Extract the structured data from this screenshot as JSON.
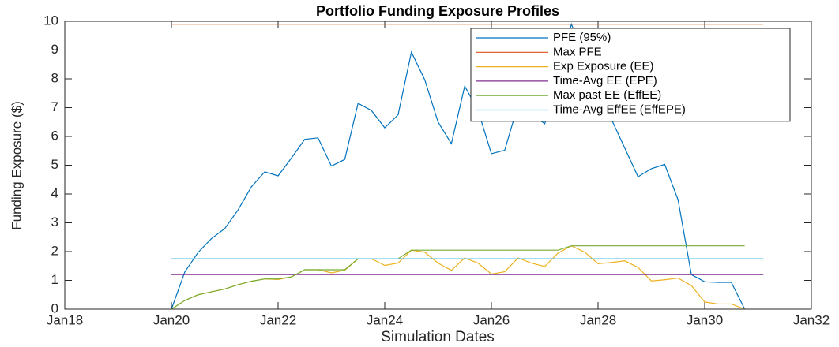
{
  "chart_data": {
    "type": "line",
    "title": "Portfolio Funding Exposure Profiles",
    "x_label": "Simulation Dates",
    "y_label": "Funding Exposure ($)",
    "x": [
      2020,
      2020.25,
      2020.5,
      2020.75,
      2021,
      2021.25,
      2021.5,
      2021.75,
      2022,
      2022.25,
      2022.5,
      2022.75,
      2023,
      2023.25,
      2023.5,
      2023.75,
      2024,
      2024.25,
      2024.5,
      2024.75,
      2025,
      2025.25,
      2025.5,
      2025.75,
      2026,
      2026.25,
      2026.5,
      2026.75,
      2027,
      2027.25,
      2027.5,
      2027.75,
      2028,
      2028.25,
      2028.5,
      2028.75,
      2029,
      2029.25,
      2029.5,
      2029.75,
      2030,
      2030.25,
      2030.5,
      2030.75
    ],
    "series": [
      {
        "name": "PFE (95%)",
        "color": "#0072BD",
        "values": [
          0,
          1.29,
          1.97,
          2.45,
          2.8,
          3.45,
          4.25,
          4.77,
          4.63,
          5.25,
          5.9,
          5.95,
          4.97,
          5.2,
          7.15,
          6.9,
          6.3,
          6.75,
          8.93,
          7.97,
          6.5,
          5.75,
          7.75,
          6.9,
          5.4,
          5.52,
          7.1,
          6.8,
          6.44,
          8.0,
          9.9,
          8.8,
          7.5,
          6.6,
          5.6,
          4.6,
          4.88,
          5.03,
          3.8,
          1.2,
          0.95,
          0.93,
          0.93,
          0
        ]
      },
      {
        "name": "Max PFE",
        "color": "#D95319",
        "x": [
          2020,
          2031.1
        ],
        "values": [
          9.9,
          9.9
        ]
      },
      {
        "name": "Exp Exposure (EE)",
        "color": "#EDB120",
        "values": [
          0,
          0.3,
          0.5,
          0.6,
          0.7,
          0.85,
          0.97,
          1.05,
          1.03,
          1.12,
          1.37,
          1.37,
          1.26,
          1.35,
          1.75,
          1.75,
          1.52,
          1.6,
          2.05,
          1.98,
          1.6,
          1.35,
          1.78,
          1.6,
          1.22,
          1.3,
          1.78,
          1.6,
          1.48,
          1.95,
          2.2,
          1.98,
          1.58,
          1.62,
          1.68,
          1.45,
          0.98,
          1.02,
          1.08,
          0.82,
          0.25,
          0.18,
          0.18,
          0
        ]
      },
      {
        "name": "Time-Avg EE (EPE)",
        "color": "#7E2F8E",
        "x": [
          2020,
          2031.1
        ],
        "values": [
          1.2,
          1.2
        ]
      },
      {
        "name": "Max past EE (EffEE)",
        "color": "#77AC30",
        "values": [
          0,
          0.3,
          0.5,
          0.6,
          0.7,
          0.85,
          0.97,
          1.05,
          1.05,
          1.12,
          1.37,
          1.37,
          1.37,
          1.37,
          1.75,
          1.75,
          1.75,
          1.75,
          2.05,
          2.05,
          2.05,
          2.05,
          2.05,
          2.05,
          2.05,
          2.05,
          2.05,
          2.05,
          2.05,
          2.05,
          2.2,
          2.2,
          2.2,
          2.2,
          2.2,
          2.2,
          2.2,
          2.2,
          2.2,
          2.2,
          2.2,
          2.2,
          2.2,
          2.2
        ]
      },
      {
        "name": "Time-Avg EffEE (EffEPE)",
        "color": "#4DBEEE",
        "x": [
          2020,
          2031.1
        ],
        "values": [
          1.75,
          1.75
        ]
      }
    ],
    "xlim": [
      2018,
      2032
    ],
    "xticks": [
      {
        "value": 2018,
        "label": "Jan18"
      },
      {
        "value": 2020,
        "label": "Jan20"
      },
      {
        "value": 2022,
        "label": "Jan22"
      },
      {
        "value": 2024,
        "label": "Jan24"
      },
      {
        "value": 2026,
        "label": "Jan26"
      },
      {
        "value": 2028,
        "label": "Jan28"
      },
      {
        "value": 2030,
        "label": "Jan30"
      },
      {
        "value": 2032,
        "label": "Jan32"
      }
    ],
    "ylim": [
      0,
      10
    ],
    "yticks": [
      0,
      1,
      2,
      3,
      4,
      5,
      6,
      7,
      8,
      9,
      10
    ],
    "legend": "top-right"
  }
}
